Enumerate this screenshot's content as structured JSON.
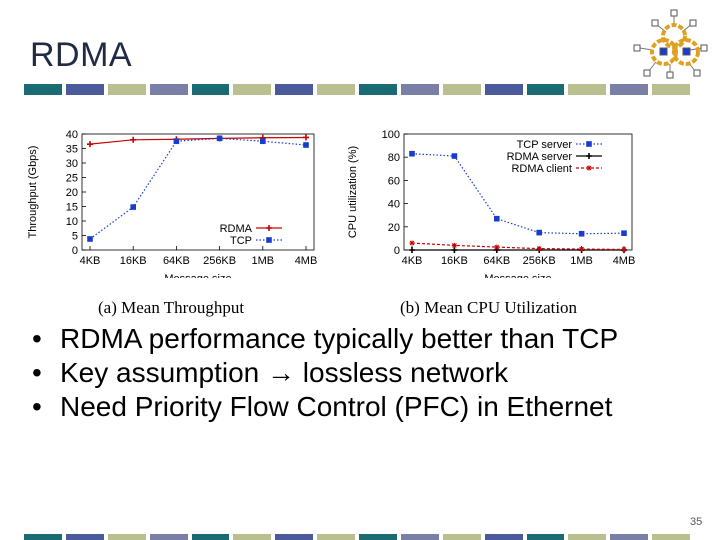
{
  "slide": {
    "title": "RDMA",
    "page_number": "35",
    "bullets": [
      "RDMA performance typically better than TCP",
      "Key assumption → lossless network",
      "Need Priority Flow Control (PFC) in Ethernet"
    ],
    "stripe_colors": [
      "#1a6b73",
      "#4a5a9a",
      "#b9bf8f",
      "#7a7fa8",
      "#1a6b73",
      "#b9bf8f",
      "#4a5a9a",
      "#b9bf8f",
      "#1a6b73",
      "#7a7fa8",
      "#b9bf8f",
      "#4a5a9a",
      "#1a6b73",
      "#b9bf8f",
      "#7a7fa8",
      "#b9bf8f"
    ]
  },
  "chart_data": [
    {
      "type": "line",
      "caption": "(a) Mean Throughput",
      "xlabel": "Message size",
      "ylabel": "Throughput (Gbps)",
      "categories": [
        "4KB",
        "16KB",
        "64KB",
        "256KB",
        "1MB",
        "4MB"
      ],
      "ylim": [
        0,
        40
      ],
      "yticks": [
        0,
        5,
        10,
        15,
        20,
        25,
        30,
        35,
        40
      ],
      "legend_position": "bottom-right",
      "series": [
        {
          "name": "RDMA",
          "values": [
            36.5,
            38,
            38.2,
            38.5,
            38.7,
            38.8
          ],
          "color": "#cc0000",
          "marker": "plus",
          "dash": "solid"
        },
        {
          "name": "TCP",
          "values": [
            3.8,
            14.8,
            37.5,
            38.5,
            37.5,
            36.2
          ],
          "color": "#1a3ccc",
          "marker": "square",
          "dash": "dotted"
        }
      ]
    },
    {
      "type": "line",
      "caption": "(b) Mean CPU Utilization",
      "xlabel": "Message size",
      "ylabel": "CPU utilization (%)",
      "categories": [
        "4KB",
        "16KB",
        "64KB",
        "256KB",
        "1MB",
        "4MB"
      ],
      "ylim": [
        0,
        100
      ],
      "yticks": [
        0,
        20,
        40,
        60,
        80,
        100
      ],
      "legend_position": "top-right",
      "series": [
        {
          "name": "TCP server",
          "values": [
            83,
            81,
            27,
            15,
            14,
            14.5
          ],
          "color": "#1a3ccc",
          "marker": "square",
          "dash": "dotted"
        },
        {
          "name": "RDMA server",
          "values": [
            0,
            0,
            0,
            0,
            0,
            0
          ],
          "color": "#000000",
          "marker": "plus",
          "dash": "solid"
        },
        {
          "name": "RDMA client",
          "values": [
            6,
            4,
            2.5,
            1.2,
            0.8,
            0.5
          ],
          "color": "#cc0000",
          "marker": "star",
          "dash": "dashed"
        }
      ]
    }
  ]
}
